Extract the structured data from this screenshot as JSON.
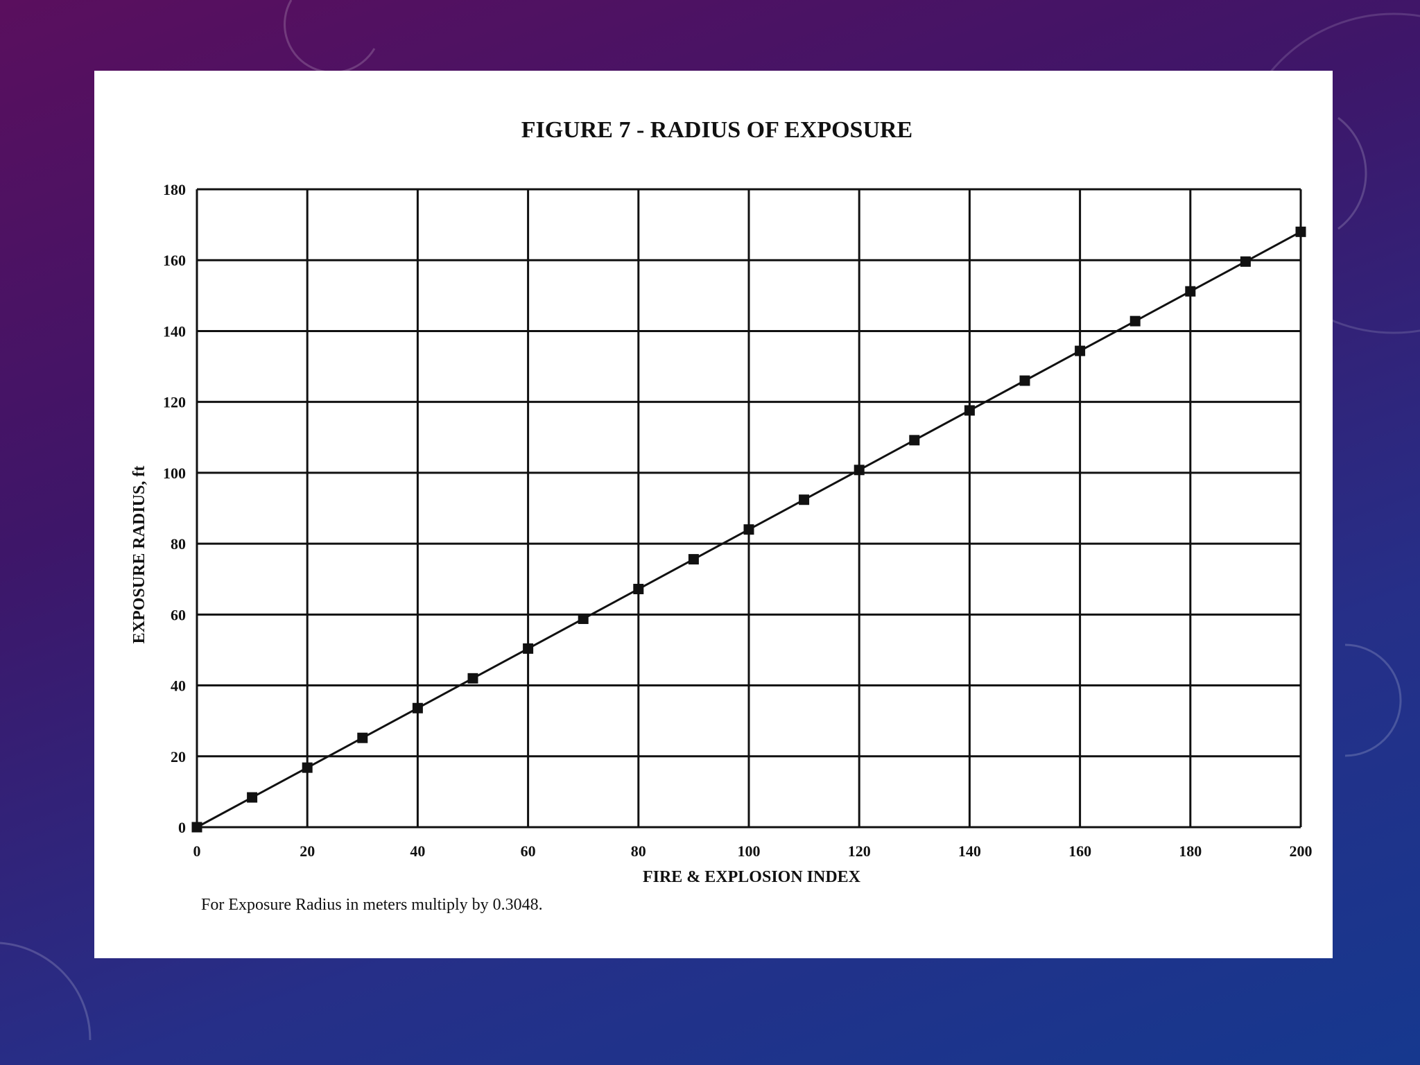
{
  "slide": {
    "background_colors": [
      "#5a0f5e",
      "#3e1669",
      "#262f88",
      "#16388e"
    ],
    "decor_icon": "gauge-dial-icon"
  },
  "chart_data": {
    "type": "line",
    "title": "FIGURE 7 - RADIUS OF EXPOSURE",
    "xlabel": "FIRE & EXPLOSION INDEX",
    "ylabel": "EXPOSURE RADIUS, ft",
    "note": "For Exposure Radius in meters multiply by 0.3048.",
    "xlim": [
      0,
      200
    ],
    "ylim": [
      0,
      180
    ],
    "x_ticks": [
      0,
      20,
      40,
      60,
      80,
      100,
      120,
      140,
      160,
      180,
      200
    ],
    "y_ticks": [
      0,
      20,
      40,
      60,
      80,
      100,
      120,
      140,
      160,
      180
    ],
    "grid": true,
    "line_color": "#111111",
    "marker": "square",
    "series": [
      {
        "x": [
          0,
          10,
          20,
          30,
          40,
          50,
          60,
          70,
          80,
          90,
          100,
          110,
          120,
          130,
          140,
          150,
          160,
          170,
          180,
          190,
          200
        ],
        "y": [
          0,
          8.4,
          16.8,
          25.2,
          33.6,
          42,
          50.4,
          58.8,
          67.2,
          75.6,
          84,
          92.4,
          100.8,
          109.2,
          117.6,
          126,
          134.4,
          142.8,
          151.2,
          159.6,
          168
        ]
      }
    ]
  }
}
